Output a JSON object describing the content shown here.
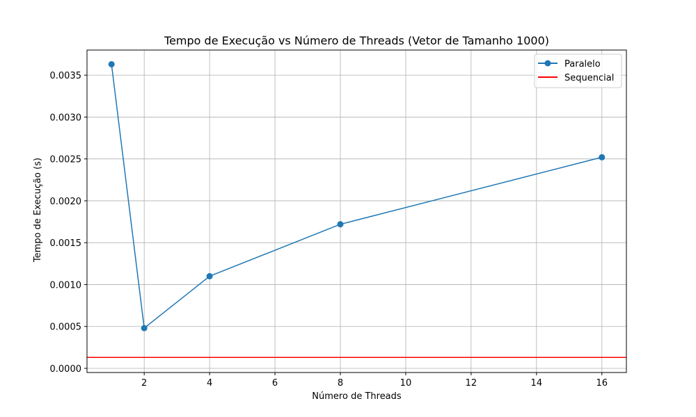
{
  "chart_data": {
    "type": "line",
    "title": "Tempo de Execução vs Número de Threads (Vetor de Tamanho 1000)",
    "xlabel": "Número de Threads",
    "ylabel": "Tempo de Execução (s)",
    "xlim": [
      0.25,
      16.75
    ],
    "ylim": [
      -5e-05,
      0.0038
    ],
    "x_ticks": [
      2,
      4,
      6,
      8,
      10,
      12,
      14,
      16
    ],
    "x_tick_labels": [
      "2",
      "4",
      "6",
      "8",
      "10",
      "12",
      "14",
      "16"
    ],
    "y_ticks": [
      0,
      0.0005,
      0.001,
      0.0015,
      0.002,
      0.0025,
      0.003,
      0.0035
    ],
    "y_tick_labels": [
      "0.0000",
      "0.0005",
      "0.0010",
      "0.0015",
      "0.0020",
      "0.0025",
      "0.0030",
      "0.0035"
    ],
    "grid": true,
    "legend_position": "top-right",
    "series": [
      {
        "name": "Paralelo",
        "kind": "line-markers",
        "color": "#1f77b4",
        "x": [
          1,
          2,
          4,
          8,
          16
        ],
        "y": [
          0.00363,
          0.00048,
          0.0011,
          0.00172,
          0.00252
        ]
      },
      {
        "name": "Sequencial",
        "kind": "hline",
        "color": "#ff0000",
        "y": 0.00013
      }
    ]
  }
}
